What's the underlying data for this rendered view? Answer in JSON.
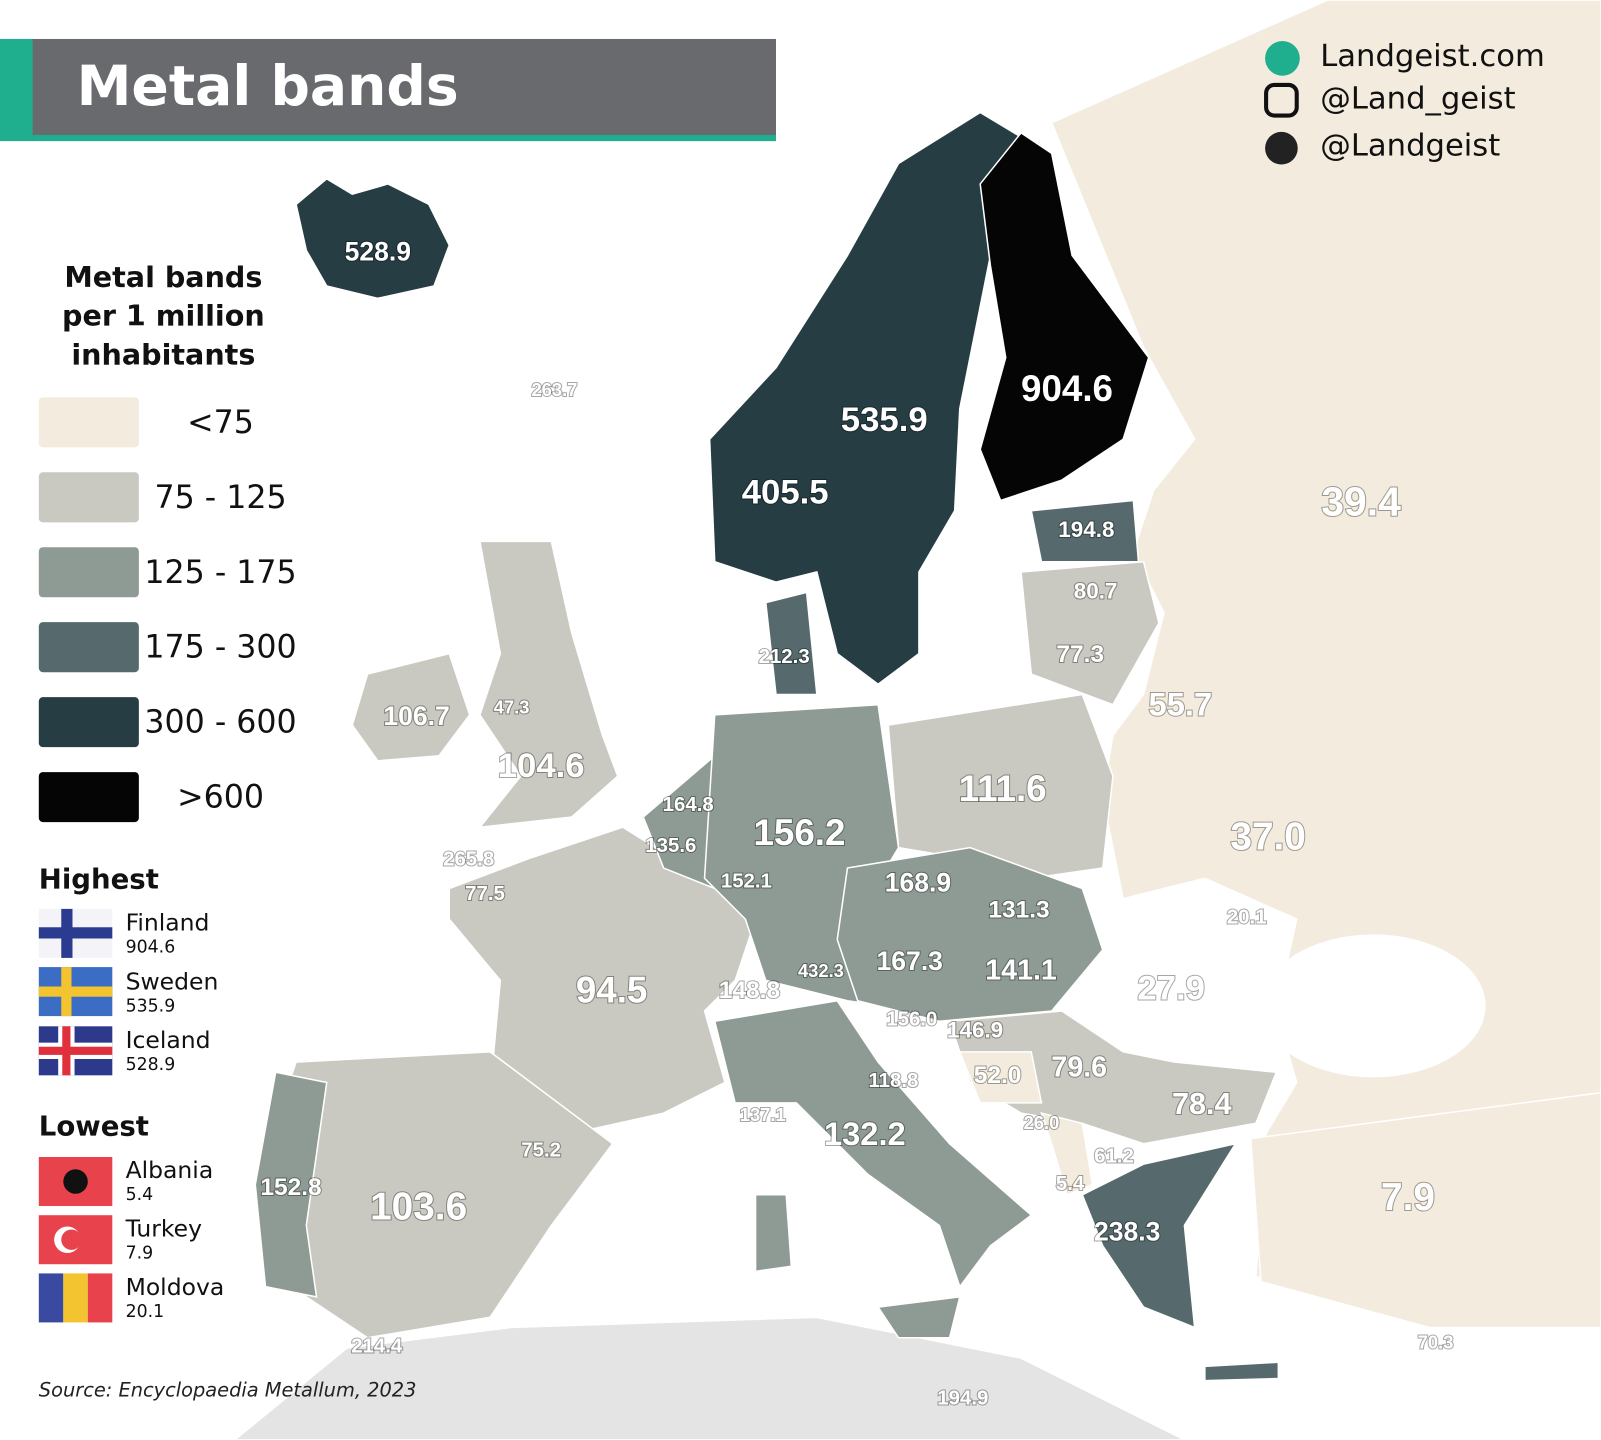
{
  "header": {
    "title": "Metal bands"
  },
  "social": [
    "Landgeist.com",
    "@Land_geist",
    "@Landgeist"
  ],
  "legend": {
    "title": [
      "Metal bands",
      "per 1 million",
      "inhabitants"
    ],
    "classes": [
      {
        "label": "<75",
        "color": "#f3ebdd"
      },
      {
        "label": "75  - 125",
        "color": "#c9c9c1"
      },
      {
        "label": "125 - 175",
        "color": "#8e9a94"
      },
      {
        "label": "175 - 300",
        "color": "#566a6d"
      },
      {
        "label": "300 - 600",
        "color": "#263d44"
      },
      {
        "label": ">600",
        "color": "#050505"
      }
    ]
  },
  "highest": {
    "title": "Highest",
    "items": [
      {
        "country": "Finland",
        "value": "904.6"
      },
      {
        "country": "Sweden",
        "value": "535.9"
      },
      {
        "country": "Iceland",
        "value": "528.9"
      }
    ]
  },
  "lowest": {
    "title": "Lowest",
    "items": [
      {
        "country": "Albania",
        "value": "5.4"
      },
      {
        "country": "Turkey",
        "value": "7.9"
      },
      {
        "country": "Moldova",
        "value": "20.1"
      }
    ]
  },
  "source": "Source: Encyclopaedia Metallum, 2023",
  "map_labels": [
    "528.9",
    "263.7",
    "904.6",
    "535.9",
    "405.5",
    "39.4",
    "194.8",
    "80.7",
    "77.3",
    "212.3",
    "55.7",
    "106.7",
    "47.3",
    "104.6",
    "111.6",
    "164.8",
    "156.2",
    "37.0",
    "135.6",
    "265.8",
    "152.1",
    "168.9",
    "77.5",
    "131.3",
    "20.1",
    "167.3",
    "141.1",
    "432.3",
    "148.8",
    "27.9",
    "94.5",
    "156.0",
    "146.9",
    "52.0",
    "79.6",
    "118.8",
    "78.4",
    "26.0",
    "137.1",
    "75.2",
    "132.2",
    "61.2",
    "5.4",
    "7.9",
    "152.8",
    "103.6",
    "238.3",
    "214.4",
    "70.3",
    "194.9"
  ]
}
